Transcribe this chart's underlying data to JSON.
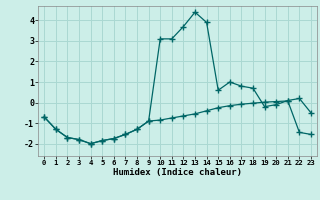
{
  "title": "",
  "xlabel": "Humidex (Indice chaleur)",
  "bg_color": "#cceee8",
  "grid_color": "#aad8d2",
  "line_color": "#006666",
  "xlim": [
    -0.5,
    23.5
  ],
  "ylim": [
    -2.6,
    4.7
  ],
  "yticks": [
    -2,
    -1,
    0,
    1,
    2,
    3,
    4
  ],
  "xticks": [
    0,
    1,
    2,
    3,
    4,
    5,
    6,
    7,
    8,
    9,
    10,
    11,
    12,
    13,
    14,
    15,
    16,
    17,
    18,
    19,
    20,
    21,
    22,
    23
  ],
  "line1_x": [
    0,
    1,
    2,
    3,
    4,
    5,
    6,
    7,
    8,
    9,
    10,
    11,
    12,
    13,
    14,
    15,
    16,
    17,
    18,
    19,
    20,
    21,
    22,
    23
  ],
  "line1_y": [
    -0.7,
    -1.3,
    -1.7,
    -1.8,
    -2.0,
    -1.85,
    -1.75,
    -1.55,
    -1.3,
    -0.9,
    3.1,
    3.1,
    3.7,
    4.4,
    3.9,
    0.6,
    1.0,
    0.8,
    0.7,
    -0.2,
    -0.1,
    0.1,
    0.2,
    -0.5
  ],
  "line2_x": [
    0,
    1,
    2,
    3,
    4,
    5,
    6,
    7,
    8,
    9,
    10,
    11,
    12,
    13,
    14,
    15,
    16,
    17,
    18,
    19,
    20,
    21,
    22,
    23
  ],
  "line2_y": [
    -0.7,
    -1.3,
    -1.7,
    -1.8,
    -2.0,
    -1.85,
    -1.75,
    -1.55,
    -1.3,
    -0.9,
    -0.85,
    -0.75,
    -0.65,
    -0.55,
    -0.4,
    -0.25,
    -0.15,
    -0.08,
    -0.03,
    0.02,
    0.05,
    0.08,
    -1.45,
    -1.55
  ]
}
